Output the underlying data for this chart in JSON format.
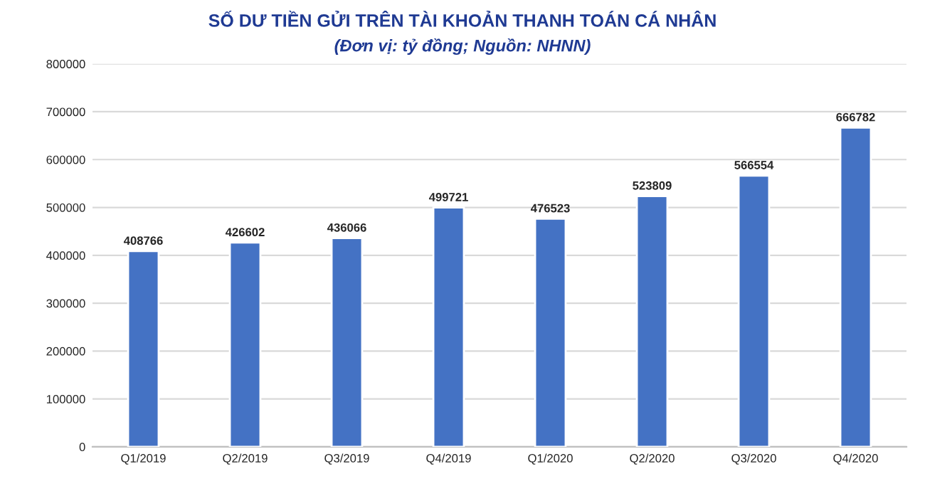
{
  "chart_data": {
    "type": "bar",
    "title": "SỐ DƯ TIỀN GỬI TRÊN TÀI KHOẢN THANH TOÁN CÁ NHÂN",
    "subtitle": "(Đơn vị: tỷ đồng; Nguồn: NHNN)",
    "categories": [
      "Q1/2019",
      "Q2/2019",
      "Q3/2019",
      "Q4/2019",
      "Q1/2020",
      "Q2/2020",
      "Q3/2020",
      "Q4/2020"
    ],
    "values": [
      408766,
      426602,
      436066,
      499721,
      476523,
      523809,
      566554,
      666782
    ],
    "color": "#4472c4",
    "data_labels": true,
    "grid": "y",
    "ylim": [
      0,
      800000
    ],
    "yticks": [
      0,
      100000,
      200000,
      300000,
      400000,
      500000,
      600000,
      700000,
      800000
    ]
  }
}
